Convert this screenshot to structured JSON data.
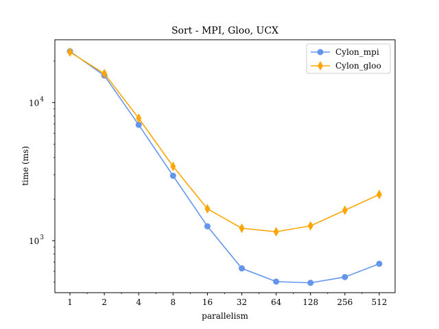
{
  "chart_data": {
    "type": "line",
    "title": "Sort - MPI, Gloo, UCX",
    "xlabel": "parallelism",
    "ylabel": "time (ms)",
    "x_scale": "log2",
    "y_scale": "log10",
    "x": [
      1,
      2,
      4,
      8,
      16,
      32,
      64,
      128,
      256,
      512
    ],
    "x_tick_labels": [
      "1",
      "2",
      "4",
      "8",
      "16",
      "32",
      "64",
      "128",
      "256",
      "512"
    ],
    "ylim": [
      420,
      28500
    ],
    "y_major_ticks": [
      {
        "value": 1000,
        "label": "10",
        "exp": "3"
      },
      {
        "value": 10000,
        "label": "10",
        "exp": "4"
      }
    ],
    "grid": false,
    "legend": "top-right",
    "series": [
      {
        "name": "Cylon_mpi",
        "color": "#6495ED",
        "marker": "circle",
        "values": [
          23500,
          15700,
          6900,
          2950,
          1270,
          630,
          505,
          495,
          545,
          680
        ]
      },
      {
        "name": "Cylon_gloo",
        "color": "#FFA500",
        "marker": "diamond",
        "values": [
          23200,
          16200,
          7700,
          3450,
          1700,
          1230,
          1160,
          1280,
          1660,
          2160
        ]
      }
    ]
  }
}
